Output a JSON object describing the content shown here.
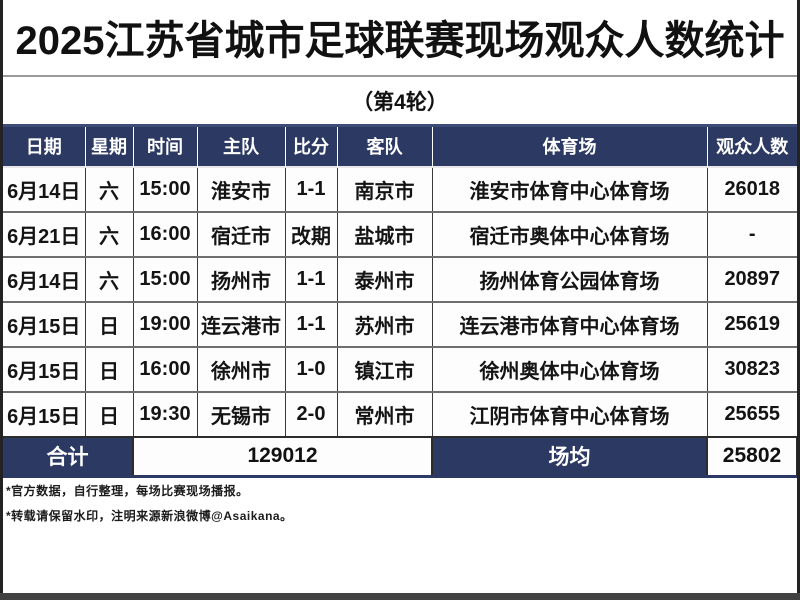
{
  "title": "2025江苏省城市足球联赛现场观众人数统计",
  "subtitle": "（第4轮）",
  "colors": {
    "header_bg": "#2c3a63",
    "header_text": "#ffffff",
    "row_bg": "#fdfdfd",
    "border_dark": "#3a3a3a",
    "edge_strip": "#232323"
  },
  "chart_data": {
    "type": "table",
    "title": "2025江苏省城市足球联赛现场观众人数统计",
    "subtitle": "（第4轮）",
    "columns": [
      "日期",
      "星期",
      "时间",
      "主队",
      "比分",
      "客队",
      "体育场",
      "观众人数"
    ],
    "rows": [
      [
        "6月14日",
        "六",
        "15:00",
        "淮安市",
        "1-1",
        "南京市",
        "淮安市体育中心体育场",
        "26018"
      ],
      [
        "6月21日",
        "六",
        "16:00",
        "宿迁市",
        "改期",
        "盐城市",
        "宿迁市奥体中心体育场",
        "-"
      ],
      [
        "6月14日",
        "六",
        "15:00",
        "扬州市",
        "1-1",
        "泰州市",
        "扬州体育公园体育场",
        "20897"
      ],
      [
        "6月15日",
        "日",
        "19:00",
        "连云港市",
        "1-1",
        "苏州市",
        "连云港市体育中心体育场",
        "25619"
      ],
      [
        "6月15日",
        "日",
        "16:00",
        "徐州市",
        "1-0",
        "镇江市",
        "徐州奥体中心体育场",
        "30823"
      ],
      [
        "6月15日",
        "日",
        "19:30",
        "无锡市",
        "2-0",
        "常州市",
        "江阴市体育中心体育场",
        "25655"
      ]
    ],
    "summary": {
      "total_label": "合计",
      "total_value": "129012",
      "avg_label": "场均",
      "avg_value": "25802"
    }
  },
  "footnotes": [
    "*官方数据，自行整理，每场比赛现场播报。",
    "*转载请保留水印，注明来源新浪微博@Asaikana。"
  ]
}
